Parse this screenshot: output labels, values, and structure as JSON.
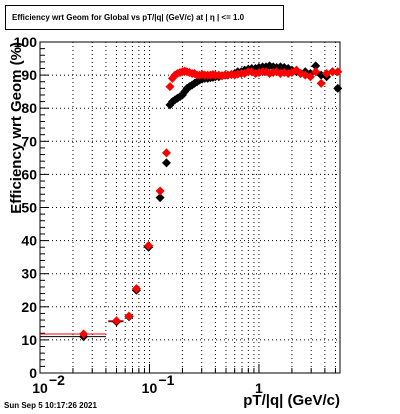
{
  "title_box": {
    "text": "Efficiency wrt Geom for Global vs pT/|q| (GeV/c) at |  η  | <= 1.0"
  },
  "footer": {
    "timestamp": "Sun Sep  5 10:17:26 2021"
  },
  "colors": {
    "series_black": "#000000",
    "series_red": "#ff0000",
    "grid": "#000000",
    "background": "#ffffff"
  },
  "chart_data": {
    "type": "scatter",
    "title": "Efficiency wrt Geom for Global vs pT/|q| (GeV/c) at |  η  | <= 1.0",
    "xlabel": "pT/|q| (GeV/c)",
    "ylabel": "Efficiency wrt Geom (%)",
    "x_scale": "log",
    "xlim": [
      0.01,
      5.5
    ],
    "ylim": [
      0,
      100
    ],
    "grid": true,
    "x_ticks": [
      {
        "value": 0.01,
        "label": "10",
        "sup": "−2"
      },
      {
        "value": 0.1,
        "label": "10",
        "sup": "−1"
      },
      {
        "value": 1,
        "label": "1",
        "sup": ""
      }
    ],
    "y_ticks": [
      {
        "value": 0,
        "label": "0"
      },
      {
        "value": 10,
        "label": "10"
      },
      {
        "value": 20,
        "label": "20"
      },
      {
        "value": 30,
        "label": "30"
      },
      {
        "value": 40,
        "label": "40"
      },
      {
        "value": 50,
        "label": "50"
      },
      {
        "value": 60,
        "label": "60"
      },
      {
        "value": 70,
        "label": "70"
      },
      {
        "value": 80,
        "label": "80"
      },
      {
        "value": 90,
        "label": "90"
      },
      {
        "value": 100,
        "label": "100"
      }
    ],
    "series": [
      {
        "color": "#000000",
        "points": [
          {
            "x": 0.025,
            "y": 11.0,
            "xerr": [
              0.01,
              0.04
            ]
          },
          {
            "x": 0.05,
            "y": 15.5,
            "xerr": [
              0.042,
              0.058
            ]
          },
          {
            "x": 0.065,
            "y": 17.0
          },
          {
            "x": 0.076,
            "y": 25.0
          },
          {
            "x": 0.098,
            "y": 38.0,
            "xerr": [
              0.088,
              0.108
            ]
          },
          {
            "x": 0.125,
            "y": 53.0
          },
          {
            "x": 0.143,
            "y": 63.5
          },
          {
            "x": 0.154,
            "y": 81.0
          },
          {
            "x": 0.162,
            "y": 82.0
          },
          {
            "x": 0.171,
            "y": 82.5
          },
          {
            "x": 0.18,
            "y": 83.0
          },
          {
            "x": 0.19,
            "y": 83.5
          },
          {
            "x": 0.2,
            "y": 84.0
          },
          {
            "x": 0.21,
            "y": 85.0
          },
          {
            "x": 0.22,
            "y": 86.0
          },
          {
            "x": 0.232,
            "y": 86.5
          },
          {
            "x": 0.245,
            "y": 87.0
          },
          {
            "x": 0.258,
            "y": 87.5
          },
          {
            "x": 0.272,
            "y": 88.0
          },
          {
            "x": 0.287,
            "y": 88.5
          },
          {
            "x": 0.303,
            "y": 88.8
          },
          {
            "x": 0.32,
            "y": 89.0
          },
          {
            "x": 0.34,
            "y": 89.0
          },
          {
            "x": 0.36,
            "y": 89.2
          },
          {
            "x": 0.38,
            "y": 89.3
          },
          {
            "x": 0.4,
            "y": 89.5
          },
          {
            "x": 0.43,
            "y": 89.5
          },
          {
            "x": 0.46,
            "y": 89.8
          },
          {
            "x": 0.49,
            "y": 90.0
          },
          {
            "x": 0.52,
            "y": 90.0
          },
          {
            "x": 0.56,
            "y": 90.2
          },
          {
            "x": 0.6,
            "y": 90.5
          },
          {
            "x": 0.64,
            "y": 91.0
          },
          {
            "x": 0.69,
            "y": 91.0
          },
          {
            "x": 0.74,
            "y": 91.5
          },
          {
            "x": 0.8,
            "y": 91.8
          },
          {
            "x": 0.86,
            "y": 92.0
          },
          {
            "x": 0.93,
            "y": 92.0
          },
          {
            "x": 1.0,
            "y": 92.3
          },
          {
            "x": 1.08,
            "y": 92.5
          },
          {
            "x": 1.16,
            "y": 92.5
          },
          {
            "x": 1.25,
            "y": 92.8
          },
          {
            "x": 1.35,
            "y": 92.5
          },
          {
            "x": 1.45,
            "y": 92.3
          },
          {
            "x": 1.57,
            "y": 92.5
          },
          {
            "x": 1.7,
            "y": 92.3
          },
          {
            "x": 1.85,
            "y": 92.0
          },
          {
            "x": 2.0,
            "y": 91.5
          },
          {
            "x": 2.2,
            "y": 91.0
          },
          {
            "x": 2.4,
            "y": 90.5
          },
          {
            "x": 2.65,
            "y": 91.0
          },
          {
            "x": 2.95,
            "y": 90.5
          },
          {
            "x": 3.3,
            "y": 92.8
          },
          {
            "x": 3.7,
            "y": 90.0
          },
          {
            "x": 4.15,
            "y": 89.5
          },
          {
            "x": 4.7,
            "y": 91.0
          },
          {
            "x": 5.25,
            "y": 86.0
          }
        ]
      },
      {
        "color": "#ff0000",
        "points": [
          {
            "x": 0.025,
            "y": 11.8,
            "xerr": [
              0.01,
              0.04
            ]
          },
          {
            "x": 0.05,
            "y": 15.8,
            "xerr": [
              0.042,
              0.058
            ]
          },
          {
            "x": 0.065,
            "y": 17.2
          },
          {
            "x": 0.076,
            "y": 25.5
          },
          {
            "x": 0.098,
            "y": 38.5,
            "xerr": [
              0.088,
              0.108
            ]
          },
          {
            "x": 0.125,
            "y": 55.0
          },
          {
            "x": 0.143,
            "y": 66.5
          },
          {
            "x": 0.154,
            "y": 86.5
          },
          {
            "x": 0.162,
            "y": 89.0
          },
          {
            "x": 0.171,
            "y": 90.0
          },
          {
            "x": 0.18,
            "y": 90.5
          },
          {
            "x": 0.19,
            "y": 90.8
          },
          {
            "x": 0.2,
            "y": 91.0
          },
          {
            "x": 0.21,
            "y": 91.2
          },
          {
            "x": 0.22,
            "y": 91.0
          },
          {
            "x": 0.232,
            "y": 90.8
          },
          {
            "x": 0.245,
            "y": 90.5
          },
          {
            "x": 0.258,
            "y": 90.5
          },
          {
            "x": 0.272,
            "y": 90.0
          },
          {
            "x": 0.287,
            "y": 90.0
          },
          {
            "x": 0.303,
            "y": 90.2
          },
          {
            "x": 0.32,
            "y": 90.0
          },
          {
            "x": 0.34,
            "y": 90.0
          },
          {
            "x": 0.36,
            "y": 90.0
          },
          {
            "x": 0.38,
            "y": 90.2
          },
          {
            "x": 0.4,
            "y": 90.0
          },
          {
            "x": 0.43,
            "y": 90.0
          },
          {
            "x": 0.46,
            "y": 89.8
          },
          {
            "x": 0.49,
            "y": 90.0
          },
          {
            "x": 0.52,
            "y": 90.0
          },
          {
            "x": 0.56,
            "y": 90.2
          },
          {
            "x": 0.6,
            "y": 90.0
          },
          {
            "x": 0.64,
            "y": 90.3
          },
          {
            "x": 0.69,
            "y": 90.5
          },
          {
            "x": 0.74,
            "y": 90.5
          },
          {
            "x": 0.8,
            "y": 91.0
          },
          {
            "x": 0.86,
            "y": 91.0
          },
          {
            "x": 0.93,
            "y": 90.5
          },
          {
            "x": 1.0,
            "y": 90.8
          },
          {
            "x": 1.08,
            "y": 91.0
          },
          {
            "x": 1.16,
            "y": 91.0
          },
          {
            "x": 1.25,
            "y": 90.5
          },
          {
            "x": 1.35,
            "y": 90.8
          },
          {
            "x": 1.45,
            "y": 91.0
          },
          {
            "x": 1.57,
            "y": 90.5
          },
          {
            "x": 1.7,
            "y": 90.8
          },
          {
            "x": 1.85,
            "y": 90.5
          },
          {
            "x": 2.0,
            "y": 90.8
          },
          {
            "x": 2.2,
            "y": 91.5
          },
          {
            "x": 2.4,
            "y": 90.5
          },
          {
            "x": 2.65,
            "y": 90.0
          },
          {
            "x": 2.95,
            "y": 89.5
          },
          {
            "x": 3.3,
            "y": 91.0
          },
          {
            "x": 3.7,
            "y": 87.5
          },
          {
            "x": 4.15,
            "y": 90.5
          },
          {
            "x": 4.7,
            "y": 91.0
          },
          {
            "x": 5.25,
            "y": 91.0
          }
        ]
      }
    ]
  }
}
